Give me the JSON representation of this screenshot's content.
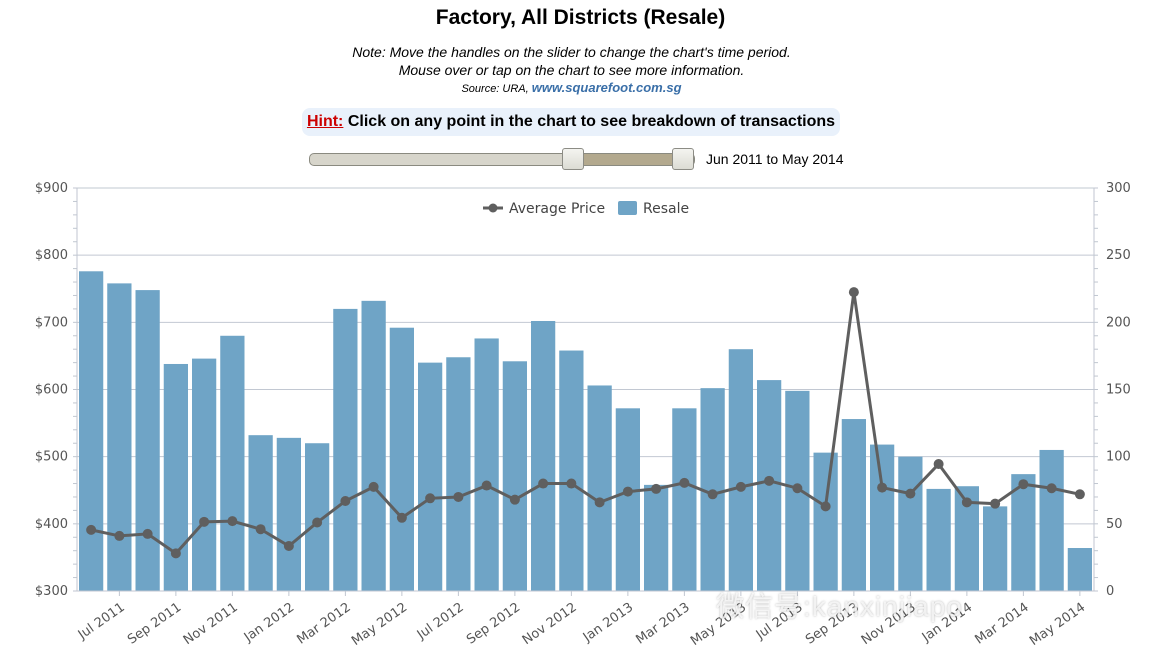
{
  "header": {
    "title": "Factory, All Districts (Resale)",
    "note_line1": "Note: Move the handles on the slider to change the chart's time period.",
    "note_line2": "Mouse over or tap on the chart to see more information.",
    "source_prefix": "Source: URA,",
    "source_link": "www.squarefoot.com.sg"
  },
  "hint": {
    "label": "Hint:",
    "text": "Click on any point in the chart to see breakdown of transactions"
  },
  "slider": {
    "range_label": "Jun 2011 to May 2014",
    "start_fraction": 0.687,
    "end_fraction": 0.974
  },
  "watermark": "微信号:kanxinjiapo",
  "colors": {
    "bar": "#6fa4c6",
    "line": "#5f5f5f",
    "grid": "#c2c8d2",
    "hint_bg": "#e9f1fb",
    "hint_label": "#cc0000"
  },
  "chart_data": {
    "type": "bar",
    "categories": [
      "Jun 2011",
      "Jul 2011",
      "Aug 2011",
      "Sep 2011",
      "Oct 2011",
      "Nov 2011",
      "Dec 2011",
      "Jan 2012",
      "Feb 2012",
      "Mar 2012",
      "Apr 2012",
      "May 2012",
      "Jun 2012",
      "Jul 2012",
      "Aug 2012",
      "Sep 2012",
      "Oct 2012",
      "Nov 2012",
      "Dec 2012",
      "Jan 2013",
      "Feb 2013",
      "Mar 2013",
      "Apr 2013",
      "May 2013",
      "Jun 2013",
      "Jul 2013",
      "Aug 2013",
      "Sep 2013",
      "Oct 2013",
      "Nov 2013",
      "Dec 2013",
      "Jan 2014",
      "Feb 2014",
      "Mar 2014",
      "Apr 2014",
      "May 2014"
    ],
    "x_tick_labels": [
      "Jul 2011",
      "Sep 2011",
      "Nov 2011",
      "Jan 2012",
      "Mar 2012",
      "May 2012",
      "Jul 2012",
      "Sep 2012",
      "Nov 2012",
      "Jan 2013",
      "Mar 2013",
      "May 2013",
      "Jul 2013",
      "Sep 2013",
      "Nov 2013",
      "Jan 2014",
      "Mar 2014",
      "May 2014"
    ],
    "legend": {
      "position": "top-center",
      "items": [
        "Average Price",
        "Resale"
      ]
    },
    "series": [
      {
        "name": "Resale",
        "type": "bar",
        "axis": "right",
        "values": [
          238,
          229,
          224,
          169,
          173,
          190,
          116,
          114,
          110,
          210,
          216,
          196,
          170,
          174,
          188,
          171,
          201,
          179,
          153,
          136,
          79,
          136,
          151,
          180,
          157,
          149,
          103,
          128,
          109,
          100,
          76,
          78,
          63,
          87,
          105,
          32
        ]
      },
      {
        "name": "Average Price",
        "type": "line",
        "axis": "left",
        "values": [
          391,
          382,
          385,
          356,
          403,
          404,
          392,
          367,
          402,
          434,
          455,
          409,
          438,
          440,
          457,
          436,
          460,
          460,
          432,
          448,
          452,
          461,
          444,
          455,
          464,
          453,
          426,
          745,
          454,
          445,
          489,
          432,
          430,
          459,
          453,
          444
        ]
      }
    ],
    "left_axis": {
      "min": 300,
      "max": 900,
      "ticks": [
        "$300",
        "$400",
        "$500",
        "$600",
        "$700",
        "$800",
        "$900"
      ]
    },
    "right_axis": {
      "min": 0,
      "max": 300,
      "ticks": [
        "0",
        "50",
        "100",
        "150",
        "200",
        "250",
        "300"
      ]
    },
    "grid": true
  }
}
